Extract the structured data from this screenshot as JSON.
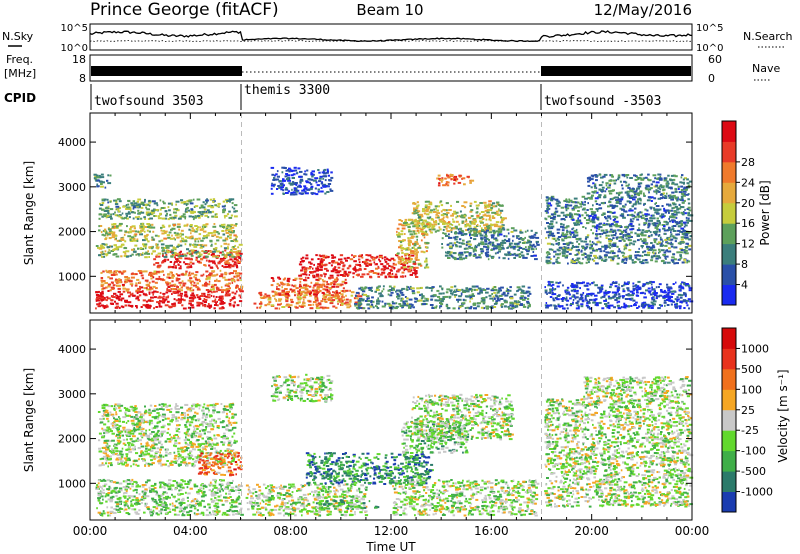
{
  "header": {
    "station": "Prince George (fitACF)",
    "beam": "Beam 10",
    "date": "12/May/2016"
  },
  "summary_panels": {
    "nsky": {
      "label": "N.Sky",
      "ticks": [
        "10^5",
        "10^0"
      ]
    },
    "nsearch": {
      "label": "N.Search",
      "ticks": [
        "10^5",
        "10^0"
      ]
    },
    "freq": {
      "label": "Freq.",
      "unit": "[MHz]",
      "ticks": [
        "18",
        "8"
      ]
    },
    "nave": {
      "label": "Nave",
      "ticks": [
        "60",
        "0"
      ]
    },
    "cpid": {
      "label": "CPID",
      "segments": [
        {
          "name": "twofsound 3503",
          "start_hour": 0
        },
        {
          "name": "themis 3300",
          "start_hour": 6
        },
        {
          "name": "twofsound -3503",
          "start_hour": 18
        }
      ]
    }
  },
  "chart_data": [
    {
      "type": "heatmap",
      "title": "Power",
      "ylabel": "Slant Range [km]",
      "xlabel": "Time UT",
      "x_ticks": [
        "00:00",
        "04:00",
        "08:00",
        "12:00",
        "16:00",
        "20:00",
        "00:00"
      ],
      "xlim_hours": [
        0,
        24
      ],
      "ylim_km": [
        180,
        4650
      ],
      "y_ticks": [
        1000,
        2000,
        3000,
        4000
      ],
      "colorbar": {
        "label": "Power [dB]",
        "ticks": [
          "4",
          "8",
          "12",
          "16",
          "20",
          "24",
          "28"
        ],
        "colors": [
          "#1a2bf0",
          "#2a50a8",
          "#3b7e7c",
          "#5da05b",
          "#c6cc3c",
          "#e6a93c",
          "#f07a2c",
          "#e83b28",
          "#dd0a14"
        ]
      },
      "scatter_bands": [
        {
          "t0": 0.2,
          "t1": 6.0,
          "r0": 300,
          "r1": 700,
          "level": 0.95
        },
        {
          "t0": 0.4,
          "t1": 6.0,
          "r0": 700,
          "r1": 1150,
          "level": 0.72
        },
        {
          "t0": 2.5,
          "t1": 6.0,
          "r0": 1200,
          "r1": 1600,
          "level": 0.9
        },
        {
          "t0": 0.2,
          "t1": 6.0,
          "r0": 1450,
          "r1": 1750,
          "level": 0.45
        },
        {
          "t0": 0.3,
          "t1": 5.8,
          "r0": 1800,
          "r1": 2200,
          "level": 0.5
        },
        {
          "t0": 0.3,
          "t1": 5.8,
          "r0": 2300,
          "r1": 2750,
          "level": 0.38
        },
        {
          "t0": 0.1,
          "t1": 0.8,
          "r0": 3000,
          "r1": 3300,
          "level": 0.3
        },
        {
          "t0": 6.5,
          "t1": 10.8,
          "r0": 300,
          "r1": 700,
          "level": 0.7
        },
        {
          "t0": 8.3,
          "t1": 13.0,
          "r0": 1000,
          "r1": 1500,
          "level": 0.92
        },
        {
          "t0": 7.2,
          "t1": 10.2,
          "r0": 600,
          "r1": 1000,
          "level": 0.78
        },
        {
          "t0": 7.2,
          "t1": 9.6,
          "r0": 2850,
          "r1": 3450,
          "level": 0.12
        },
        {
          "t0": 12.8,
          "t1": 16.5,
          "r0": 2000,
          "r1": 2700,
          "level": 0.5
        },
        {
          "t0": 13.8,
          "t1": 15.2,
          "r0": 3050,
          "r1": 3300,
          "level": 0.75
        },
        {
          "t0": 12.2,
          "t1": 13.4,
          "r0": 1200,
          "r1": 2300,
          "level": 0.55
        },
        {
          "t0": 10.5,
          "t1": 17.5,
          "r0": 300,
          "r1": 800,
          "level": 0.3
        },
        {
          "t0": 14.0,
          "t1": 17.8,
          "r0": 1400,
          "r1": 2100,
          "level": 0.28
        },
        {
          "t0": 18.1,
          "t1": 23.9,
          "r0": 1300,
          "r1": 2000,
          "level": 0.3
        },
        {
          "t0": 18.1,
          "t1": 23.9,
          "r0": 2000,
          "r1": 2800,
          "level": 0.25
        },
        {
          "t0": 19.8,
          "t1": 23.9,
          "r0": 2800,
          "r1": 3300,
          "level": 0.28
        },
        {
          "t0": 18.1,
          "t1": 23.9,
          "r0": 300,
          "r1": 900,
          "level": 0.12
        }
      ]
    },
    {
      "type": "heatmap",
      "title": "Velocity",
      "ylabel": "Slant Range [km]",
      "xlabel": "Time UT",
      "x_ticks": [
        "00:00",
        "04:00",
        "08:00",
        "12:00",
        "16:00",
        "20:00",
        "00:00"
      ],
      "xlim_hours": [
        0,
        24
      ],
      "ylim_km": [
        180,
        4650
      ],
      "y_ticks": [
        1000,
        2000,
        3000,
        4000
      ],
      "colorbar": {
        "label": "Velocity [m s⁻¹]",
        "ticks": [
          "1000",
          "500",
          "100",
          "25",
          "-25",
          "-100",
          "-500",
          "-1000"
        ],
        "colors": [
          "#1a3cb0",
          "#2b7a6a",
          "#3fae48",
          "#62d82e",
          "#c8c8c8",
          "#f5a623",
          "#f0701c",
          "#e8321c",
          "#d60a0a"
        ]
      },
      "scatter_bands": [
        {
          "t0": 0.2,
          "t1": 6.0,
          "r0": 300,
          "r1": 1100,
          "level": 0.4
        },
        {
          "t0": 0.3,
          "t1": 5.8,
          "r0": 1400,
          "r1": 2800,
          "level": 0.44
        },
        {
          "t0": 4.3,
          "t1": 6.0,
          "r0": 1200,
          "r1": 1700,
          "level": 0.72
        },
        {
          "t0": 6.2,
          "t1": 11.0,
          "r0": 300,
          "r1": 1000,
          "level": 0.45
        },
        {
          "t0": 8.6,
          "t1": 13.6,
          "r0": 1000,
          "r1": 1700,
          "level": 0.2
        },
        {
          "t0": 9.0,
          "t1": 11.5,
          "r0": 450,
          "r1": 650,
          "level": 0.3
        },
        {
          "t0": 12.4,
          "t1": 15.0,
          "r0": 1700,
          "r1": 2400,
          "level": 0.36
        },
        {
          "t0": 7.2,
          "t1": 9.6,
          "r0": 2850,
          "r1": 3450,
          "level": 0.44
        },
        {
          "t0": 12.8,
          "t1": 16.8,
          "r0": 2000,
          "r1": 3000,
          "level": 0.44
        },
        {
          "t0": 12.0,
          "t1": 17.8,
          "r0": 300,
          "r1": 1100,
          "level": 0.44
        },
        {
          "t0": 18.1,
          "t1": 23.9,
          "r0": 500,
          "r1": 2900,
          "level": 0.44
        },
        {
          "t0": 19.6,
          "t1": 23.9,
          "r0": 2900,
          "r1": 3400,
          "level": 0.44
        }
      ]
    }
  ],
  "time_label": "Time UT"
}
